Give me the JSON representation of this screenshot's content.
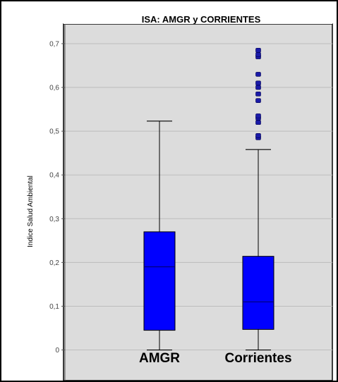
{
  "chart_data": {
    "type": "boxplot",
    "title": "ISA: AMGR y CORRIENTES",
    "xlabel": "",
    "ylabel": "Indice Salud Ambiental",
    "ylim": [
      -0.07,
      0.745
    ],
    "yticks": [
      "0",
      "0,1",
      "0,2",
      "0,3",
      "0,4",
      "0,5",
      "0,6",
      "0,7"
    ],
    "ytick_values": [
      0,
      0.1,
      0.2,
      0.3,
      0.4,
      0.5,
      0.6,
      0.7
    ],
    "grid": true,
    "categories": [
      "AMGR",
      "Corrientes"
    ],
    "series": [
      {
        "whisker_low": 0.0,
        "q1": 0.045,
        "median": 0.19,
        "q3": 0.27,
        "whisker_high": 0.523,
        "outliers": []
      },
      {
        "whisker_low": 0.0,
        "q1": 0.047,
        "median": 0.11,
        "q3": 0.214,
        "whisker_high": 0.458,
        "outliers": [
          0.485,
          0.49,
          0.52,
          0.53,
          0.535,
          0.57,
          0.585,
          0.6,
          0.61,
          0.63,
          0.67,
          0.675,
          0.685
        ]
      }
    ],
    "colors": {
      "box": "#0000ff",
      "outlier": "#1a1aa8",
      "plot_background": "#dcdcdc",
      "grid": "#bdbdbd",
      "frame": "#000000"
    }
  }
}
